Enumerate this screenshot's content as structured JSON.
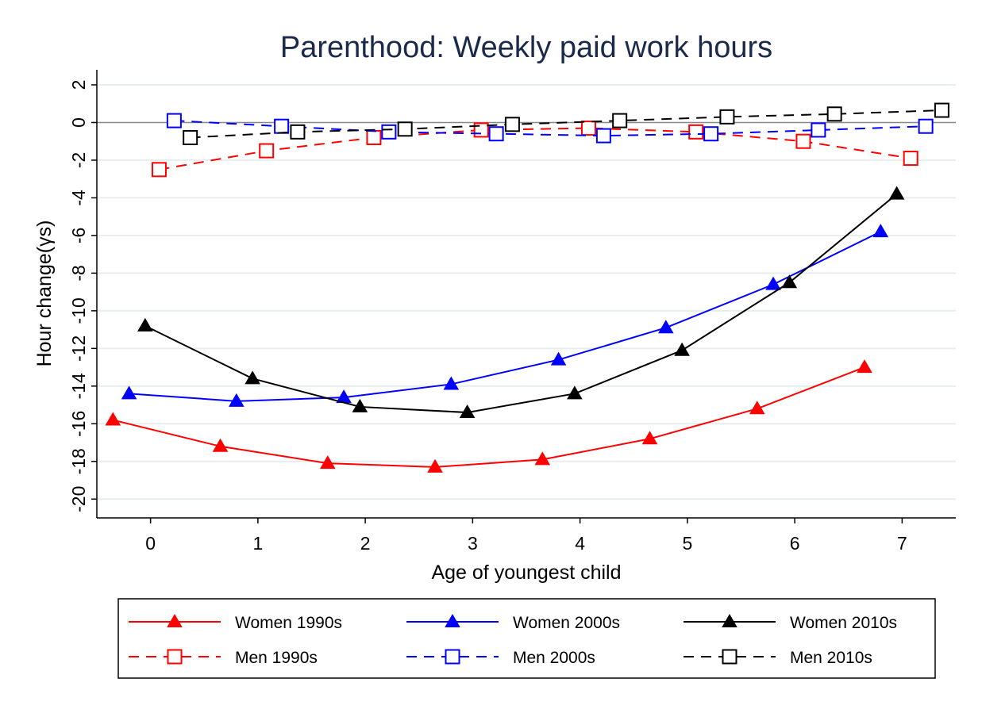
{
  "chart_data": {
    "type": "line",
    "title": "Parenthood: Weekly paid work hours",
    "xlabel": "Age of youngest child",
    "ylabel": "Hour change(γs)",
    "x_ticks": [
      "0",
      "1",
      "2",
      "3",
      "4",
      "5",
      "6",
      "7"
    ],
    "y_ticks": [
      "2",
      "0",
      "-2",
      "-4",
      "-6",
      "-8",
      "-10",
      "-12",
      "-14",
      "-16",
      "-18",
      "-20"
    ],
    "xlim": [
      -0.5,
      7.5
    ],
    "ylim": [
      -21,
      2.8
    ],
    "grid": true,
    "legend_position": "bottom",
    "series": [
      {
        "name": "Women 1990s",
        "color": "#ff0000",
        "marker": "triangle",
        "dash": "solid",
        "x": [
          -0.35,
          0.65,
          1.65,
          2.65,
          3.65,
          4.65,
          5.65,
          6.65
        ],
        "y": [
          -15.8,
          -17.2,
          -18.1,
          -18.3,
          -17.9,
          -16.8,
          -15.2,
          -13.0
        ]
      },
      {
        "name": "Women 2000s",
        "color": "#0000ff",
        "marker": "triangle",
        "dash": "solid",
        "x": [
          -0.2,
          0.8,
          1.8,
          2.8,
          3.8,
          4.8,
          5.8,
          6.8
        ],
        "y": [
          -14.4,
          -14.8,
          -14.6,
          -13.9,
          -12.6,
          -10.9,
          -8.6,
          -5.8
        ]
      },
      {
        "name": "Women 2010s",
        "color": "#000000",
        "marker": "triangle",
        "dash": "solid",
        "x": [
          -0.05,
          0.95,
          1.95,
          2.95,
          3.95,
          4.95,
          5.95,
          6.95
        ],
        "y": [
          -10.8,
          -13.6,
          -15.1,
          -15.4,
          -14.4,
          -12.1,
          -8.5,
          -3.8
        ]
      },
      {
        "name": "Men 1990s",
        "color": "#ff0000",
        "marker": "square",
        "dash": "dashed",
        "x": [
          0.08,
          1.08,
          2.08,
          3.08,
          4.08,
          5.08,
          6.08,
          7.08
        ],
        "y": [
          -2.5,
          -1.5,
          -0.8,
          -0.4,
          -0.3,
          -0.5,
          -1.0,
          -1.9
        ]
      },
      {
        "name": "Men 2000s",
        "color": "#0000ff",
        "marker": "square",
        "dash": "dashed",
        "x": [
          0.22,
          1.22,
          2.22,
          3.22,
          4.22,
          5.22,
          6.22,
          7.22
        ],
        "y": [
          0.1,
          -0.2,
          -0.5,
          -0.6,
          -0.7,
          -0.6,
          -0.4,
          -0.2
        ]
      },
      {
        "name": "Men 2010s",
        "color": "#000000",
        "marker": "square",
        "dash": "dashed",
        "x": [
          0.37,
          1.37,
          2.37,
          3.37,
          4.37,
          5.37,
          6.37,
          7.37
        ],
        "y": [
          -0.8,
          -0.5,
          -0.35,
          -0.1,
          0.1,
          0.3,
          0.45,
          0.65
        ]
      }
    ]
  }
}
